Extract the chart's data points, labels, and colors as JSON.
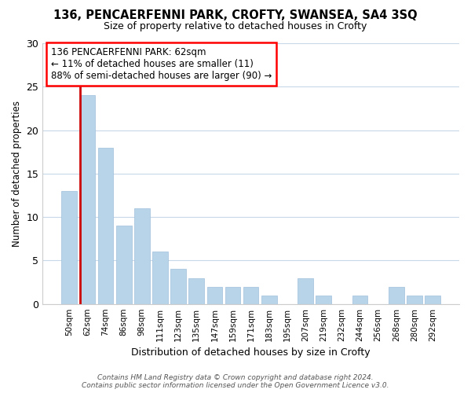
{
  "title": "136, PENCAERFENNI PARK, CROFTY, SWANSEA, SA4 3SQ",
  "subtitle": "Size of property relative to detached houses in Crofty",
  "xlabel": "Distribution of detached houses by size in Crofty",
  "ylabel": "Number of detached properties",
  "bar_color": "#b8d4e8",
  "bar_edge_color": "#a0c0dc",
  "highlight_color": "#cc0000",
  "categories": [
    "50sqm",
    "62sqm",
    "74sqm",
    "86sqm",
    "98sqm",
    "111sqm",
    "123sqm",
    "135sqm",
    "147sqm",
    "159sqm",
    "171sqm",
    "183sqm",
    "195sqm",
    "207sqm",
    "219sqm",
    "232sqm",
    "244sqm",
    "256sqm",
    "268sqm",
    "280sqm",
    "292sqm"
  ],
  "values": [
    13,
    24,
    18,
    9,
    11,
    6,
    4,
    3,
    2,
    2,
    2,
    1,
    0,
    3,
    1,
    0,
    1,
    0,
    2,
    1,
    1
  ],
  "highlight_index": 1,
  "ylim": [
    0,
    30
  ],
  "yticks": [
    0,
    5,
    10,
    15,
    20,
    25,
    30
  ],
  "annotation_lines": [
    "136 PENCAERFENNI PARK: 62sqm",
    "← 11% of detached houses are smaller (11)",
    "88% of semi-detached houses are larger (90) →"
  ],
  "footer_line1": "Contains HM Land Registry data © Crown copyright and database right 2024.",
  "footer_line2": "Contains public sector information licensed under the Open Government Licence v3.0.",
  "bg_color": "#ffffff",
  "grid_color": "#c8d8e8"
}
